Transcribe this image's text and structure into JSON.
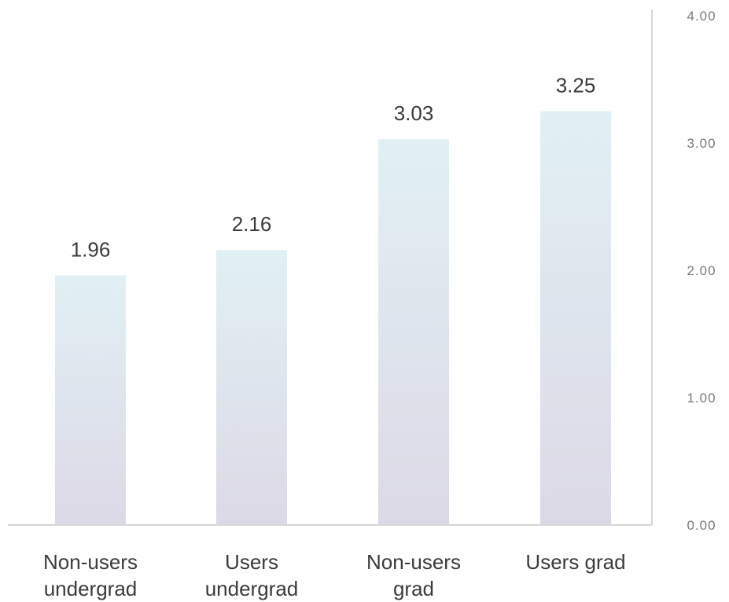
{
  "chart_data": {
    "type": "bar",
    "title": "",
    "xlabel": "",
    "ylabel": "",
    "categories": [
      [
        "Non-users",
        "undergrad"
      ],
      [
        "Users",
        "undergrad"
      ],
      [
        "Non-users",
        "grad"
      ],
      [
        "Users grad"
      ]
    ],
    "values": [
      1.96,
      2.16,
      3.03,
      3.25
    ],
    "value_labels": [
      "1.96",
      "2.16",
      "3.03",
      "3.25"
    ],
    "ylim": [
      0,
      4
    ],
    "yticks": [
      "0.00",
      "1.00",
      "2.00",
      "3.00",
      "4.00"
    ],
    "y_axis_position": "right",
    "grid": false,
    "legend": "none",
    "colors": {
      "bar_top": "#e1f0f4",
      "bar_bottom": "#dcd9e6",
      "axis": "#d6d6d6",
      "value_text": "#3b3b3b",
      "tick_text": "#7a7a7a",
      "category_text": "#3b3b3b"
    }
  }
}
